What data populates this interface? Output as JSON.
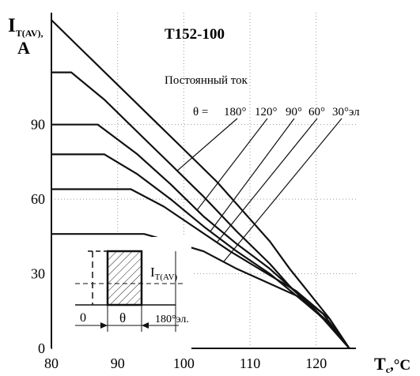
{
  "chart_data": {
    "type": "line",
    "title": "T152-100",
    "ylabel_main": "I",
    "ylabel_sub": "T(AV),",
    "ylabel_unit": "A",
    "xlabel_main": "T",
    "xlabel_sub": "c",
    "xlabel_unit": ",°C",
    "xlim": [
      80,
      126
    ],
    "ylim": [
      0,
      135
    ],
    "x_ticks": [
      "80",
      "90",
      "100",
      "110",
      "120"
    ],
    "y_ticks": [
      "0",
      "30",
      "60",
      "90"
    ],
    "series": [
      {
        "name": "Постоянный ток",
        "points": [
          [
            80,
            132
          ],
          [
            85,
            119
          ],
          [
            90,
            106
          ],
          [
            95,
            93
          ],
          [
            100,
            80
          ],
          [
            105,
            67
          ],
          [
            110,
            52
          ],
          [
            113,
            43
          ],
          [
            116,
            32
          ],
          [
            119,
            22
          ],
          [
            122,
            12
          ],
          [
            125,
            0
          ]
        ]
      },
      {
        "name": "180°",
        "points": [
          [
            80,
            111
          ],
          [
            83,
            111
          ],
          [
            88,
            100
          ],
          [
            93,
            87
          ],
          [
            98,
            74
          ],
          [
            103,
            61
          ],
          [
            108,
            47
          ],
          [
            113,
            34
          ],
          [
            116,
            25
          ],
          [
            121,
            12
          ],
          [
            125,
            0
          ]
        ]
      },
      {
        "name": "120°",
        "points": [
          [
            80,
            90
          ],
          [
            87,
            90
          ],
          [
            93,
            78
          ],
          [
            98,
            66
          ],
          [
            103,
            53
          ],
          [
            108,
            42
          ],
          [
            113,
            32
          ],
          [
            118,
            20
          ],
          [
            122,
            10
          ],
          [
            125,
            0
          ]
        ]
      },
      {
        "name": "90°",
        "points": [
          [
            80,
            78
          ],
          [
            88,
            78
          ],
          [
            93,
            70
          ],
          [
            98,
            60
          ],
          [
            103,
            49
          ],
          [
            108,
            39
          ],
          [
            113,
            30
          ],
          [
            118,
            19
          ],
          [
            122,
            10
          ],
          [
            125,
            0
          ]
        ]
      },
      {
        "name": "60°",
        "points": [
          [
            80,
            64
          ],
          [
            92,
            64
          ],
          [
            97,
            57
          ],
          [
            102,
            48
          ],
          [
            107,
            39
          ],
          [
            112,
            31
          ],
          [
            117,
            23
          ],
          [
            121,
            14
          ],
          [
            125,
            0
          ]
        ]
      },
      {
        "name": "30°эл",
        "points": [
          [
            80,
            46
          ],
          [
            94,
            46
          ],
          [
            98,
            43
          ],
          [
            103,
            39
          ],
          [
            108,
            32
          ],
          [
            113,
            26
          ],
          [
            118,
            20
          ],
          [
            122,
            12
          ],
          [
            125,
            0
          ]
        ]
      }
    ],
    "legend": {
      "dc_label": "Постоянный ток",
      "theta_prefix": "θ =",
      "angle_labels": [
        "180°",
        "120°",
        "90°",
        "60°",
        "30°эл"
      ]
    },
    "inset": {
      "current_label": "I",
      "current_sub": "T(AV)",
      "zero_label": "0",
      "theta_label": "θ",
      "period_label": "180°эл."
    },
    "grid": true
  }
}
